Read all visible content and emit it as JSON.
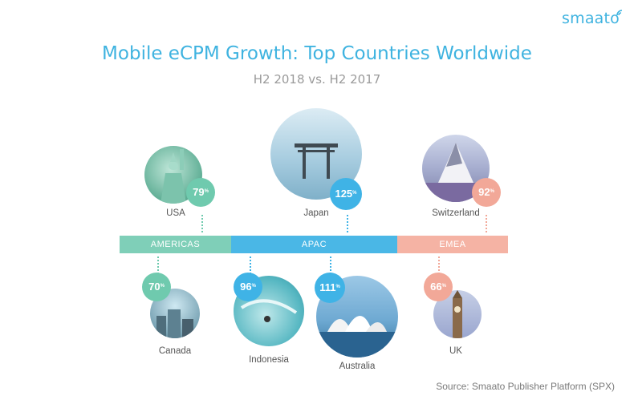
{
  "brand": {
    "logo_text": "smaato"
  },
  "chart_data": {
    "type": "bubble-map",
    "title": "Mobile eCPM Growth: Top Countries Worldwide",
    "subtitle": "H2 2018 vs. H2 2017",
    "unit": "%",
    "regions": [
      {
        "name": "AMERICAS",
        "color": "#7fcfb8"
      },
      {
        "name": "APAC",
        "color": "#4ab7e6"
      },
      {
        "name": "EMEA",
        "color": "#f5b3a4"
      }
    ],
    "countries": [
      {
        "name": "USA",
        "region": "AMERICAS",
        "growth": 79
      },
      {
        "name": "Canada",
        "region": "AMERICAS",
        "growth": 70
      },
      {
        "name": "Japan",
        "region": "APAC",
        "growth": 125
      },
      {
        "name": "Indonesia",
        "region": "APAC",
        "growth": 96
      },
      {
        "name": "Australia",
        "region": "APAC",
        "growth": 111
      },
      {
        "name": "Switzerland",
        "region": "EMEA",
        "growth": 92
      },
      {
        "name": "UK",
        "region": "EMEA",
        "growth": 66
      }
    ]
  },
  "source": "Source: Smaato Publisher Platform (SPX)"
}
